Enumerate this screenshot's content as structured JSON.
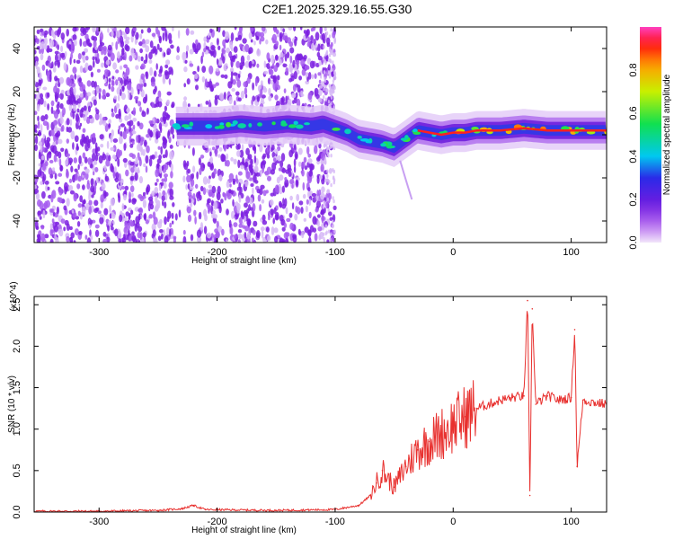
{
  "title": "C2E1.2025.329.16.55.G30",
  "chart_data": [
    {
      "type": "heatmap",
      "xlabel": "Height of straight line (km)",
      "ylabel": "Frequency (Hz)",
      "xlim": [
        -355,
        130
      ],
      "ylim": [
        -50,
        50
      ],
      "x_ticks": [
        -300,
        -200,
        -100,
        0,
        100
      ],
      "y_ticks": [
        -40,
        -20,
        0,
        20,
        40
      ],
      "colorbar": {
        "label": "Normalized spectral amplitude",
        "range": [
          0,
          1
        ],
        "ticks": [
          0.0,
          0.2,
          0.4,
          0.6,
          0.8
        ]
      },
      "ridge": {
        "x": [
          -235,
          -220,
          -200,
          -180,
          -160,
          -140,
          -120,
          -110,
          -100,
          -90,
          -80,
          -70,
          -60,
          -50,
          -45,
          -40,
          -30,
          -20,
          -10,
          0,
          10,
          20,
          40,
          60,
          80,
          100,
          130
        ],
        "freq_hz": [
          4,
          4,
          4,
          5,
          4,
          5,
          4,
          5,
          3,
          1,
          -2,
          -3,
          -4,
          -6,
          -4,
          -2,
          2,
          1,
          0,
          1,
          1,
          2,
          2,
          3,
          2,
          2,
          2
        ]
      },
      "noise_region_x": [
        -355,
        -110
      ]
    },
    {
      "type": "line",
      "xlabel": "Height of straight line (km)",
      "ylabel": "SNR (10 * v/v)",
      "y_multiplier": "(x10^4)",
      "xlim": [
        -355,
        130
      ],
      "ylim": [
        0,
        2.6
      ],
      "x_ticks": [
        -300,
        -200,
        -100,
        0,
        100
      ],
      "y_ticks": [
        0.0,
        0.5,
        1.0,
        1.5,
        2.0,
        2.5
      ],
      "color": "#e8302e",
      "series": [
        {
          "x": [
            -355,
            -300,
            -250,
            -230,
            -220,
            -210,
            -150,
            -100,
            -80,
            -70,
            -65,
            -60,
            -50,
            -40,
            -30,
            -20,
            -10,
            0,
            10,
            20,
            30,
            40,
            50,
            60,
            63,
            65,
            67,
            70,
            80,
            90,
            100,
            103,
            105,
            110,
            120,
            130
          ],
          "values": [
            0.01,
            0.01,
            0.02,
            0.04,
            0.08,
            0.03,
            0.02,
            0.03,
            0.08,
            0.2,
            0.35,
            0.5,
            0.3,
            0.55,
            0.75,
            0.85,
            0.95,
            1.05,
            1.15,
            1.25,
            1.3,
            1.35,
            1.38,
            1.4,
            2.55,
            0.2,
            2.45,
            1.3,
            1.4,
            1.35,
            1.38,
            2.2,
            0.55,
            1.35,
            1.32,
            1.3
          ]
        }
      ]
    }
  ]
}
